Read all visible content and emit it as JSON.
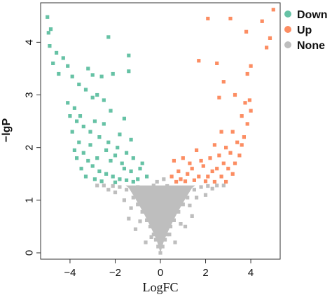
{
  "chart_data": {
    "type": "scatter",
    "title": "",
    "xlabel": "LogFC",
    "ylabel": "−lgP",
    "xlim": [
      -5.3,
      5.3
    ],
    "ylim": [
      -0.12,
      4.75
    ],
    "xticks": [
      -4,
      -2,
      0,
      2,
      4
    ],
    "xtick_labels": [
      "−4",
      "−2",
      "0",
      "2",
      "4"
    ],
    "yticks": [
      0,
      1,
      2,
      3,
      4
    ],
    "ytick_labels": [
      "0",
      "1",
      "2",
      "3",
      "4"
    ],
    "grid": false,
    "legend_position": "top-right",
    "colors": {
      "Down": "#66c2a5",
      "Up": "#fc8d62",
      "None": "#bebebe"
    },
    "series": [
      {
        "name": "None",
        "points": [
          [
            0,
            0.0
          ],
          [
            -0.1,
            0.12
          ],
          [
            0.1,
            0.12
          ],
          [
            -0.2,
            0.25
          ],
          [
            0.2,
            0.25
          ],
          [
            -0.3,
            0.35
          ],
          [
            0.3,
            0.35
          ],
          [
            -0.45,
            0.5
          ],
          [
            0.45,
            0.5
          ],
          [
            -0.6,
            0.62
          ],
          [
            0.6,
            0.62
          ],
          [
            -0.8,
            0.78
          ],
          [
            0.8,
            0.78
          ],
          [
            -1.0,
            0.92
          ],
          [
            1.0,
            0.92
          ],
          [
            -1.2,
            1.05
          ],
          [
            1.2,
            1.05
          ],
          [
            -1.5,
            1.2
          ],
          [
            1.5,
            1.2
          ],
          [
            -1.8,
            1.25
          ],
          [
            1.8,
            1.25
          ],
          [
            -2.1,
            1.27
          ],
          [
            2.1,
            1.27
          ],
          [
            -2.5,
            1.28
          ],
          [
            2.5,
            1.28
          ],
          [
            -2.8,
            1.28
          ],
          [
            2.8,
            1.28
          ],
          [
            -0.2,
            0.6
          ],
          [
            0.2,
            0.7
          ],
          [
            -0.5,
            0.9
          ],
          [
            0.5,
            1.0
          ],
          [
            -0.7,
            1.2
          ],
          [
            0.7,
            1.15
          ],
          [
            -1.0,
            1.25
          ],
          [
            1.0,
            1.22
          ],
          [
            -0.4,
            0.3
          ],
          [
            0.4,
            0.35
          ],
          [
            -0.9,
            0.6
          ],
          [
            0.9,
            0.55
          ],
          [
            -1.3,
            0.85
          ],
          [
            1.3,
            0.9
          ],
          [
            -1.6,
            1.0
          ],
          [
            1.6,
            1.05
          ],
          [
            -2.0,
            1.15
          ],
          [
            2.0,
            1.1
          ],
          [
            -0.3,
            1.28
          ],
          [
            0.3,
            1.27
          ],
          [
            -0.15,
            1.35
          ],
          [
            0.15,
            1.4
          ],
          [
            -1.1,
            0.45
          ],
          [
            1.1,
            0.5
          ],
          [
            -0.65,
            0.2
          ],
          [
            0.65,
            0.2
          ],
          [
            -1.4,
            0.65
          ],
          [
            1.4,
            0.7
          ],
          [
            -2.3,
            1.2
          ],
          [
            2.3,
            1.22
          ]
        ]
      },
      {
        "name": "Down",
        "points": [
          [
            -5.0,
            4.48
          ],
          [
            -4.85,
            4.25
          ],
          [
            -4.95,
            4.18
          ],
          [
            -4.9,
            3.93
          ],
          [
            -4.6,
            3.8
          ],
          [
            -4.3,
            3.7
          ],
          [
            -4.75,
            3.6
          ],
          [
            -4.1,
            3.55
          ],
          [
            -4.5,
            3.4
          ],
          [
            -3.0,
            3.38
          ],
          [
            -2.6,
            3.35
          ],
          [
            -3.2,
            3.5
          ],
          [
            -3.9,
            3.35
          ],
          [
            -3.6,
            3.2
          ],
          [
            -2.1,
            3.4
          ],
          [
            -1.4,
            3.45
          ],
          [
            -1.4,
            3.75
          ],
          [
            -2.3,
            4.1
          ],
          [
            -3.3,
            3.1
          ],
          [
            -2.8,
            3.0
          ],
          [
            -3.0,
            2.95
          ],
          [
            -2.5,
            2.9
          ],
          [
            -4.1,
            2.85
          ],
          [
            -3.8,
            2.75
          ],
          [
            -2.2,
            2.7
          ],
          [
            -1.6,
            2.55
          ],
          [
            -4.0,
            2.6
          ],
          [
            -3.7,
            2.5
          ],
          [
            -3.4,
            2.4
          ],
          [
            -3.1,
            2.3
          ],
          [
            -2.7,
            2.2
          ],
          [
            -2.3,
            2.1
          ],
          [
            -1.9,
            2.0
          ],
          [
            -1.5,
            1.9
          ],
          [
            -1.2,
            1.8
          ],
          [
            -0.9,
            1.6
          ],
          [
            -3.9,
            2.3
          ],
          [
            -3.6,
            2.1
          ],
          [
            -3.4,
            1.9
          ],
          [
            -3.2,
            1.75
          ],
          [
            -3.0,
            1.65
          ],
          [
            -2.7,
            1.55
          ],
          [
            -2.4,
            1.5
          ],
          [
            -2.1,
            1.45
          ],
          [
            -1.8,
            1.4
          ],
          [
            -1.5,
            1.38
          ],
          [
            -1.2,
            1.35
          ],
          [
            -3.7,
            1.8
          ],
          [
            -3.5,
            1.6
          ],
          [
            -3.3,
            1.45
          ],
          [
            -2.9,
            1.4
          ],
          [
            -2.6,
            1.36
          ],
          [
            -2.0,
            1.34
          ],
          [
            -1.0,
            1.4
          ],
          [
            -0.8,
            1.7
          ],
          [
            -0.6,
            1.45
          ],
          [
            -3.8,
            1.95
          ],
          [
            -3.55,
            2.6
          ],
          [
            -2.9,
            2.5
          ],
          [
            -2.5,
            2.45
          ],
          [
            -1.8,
            2.25
          ],
          [
            -1.3,
            2.15
          ],
          [
            -2.8,
            1.8
          ],
          [
            -2.2,
            1.75
          ],
          [
            -1.6,
            1.6
          ],
          [
            -1.3,
            1.55
          ],
          [
            -3.1,
            2.05
          ],
          [
            -2.4,
            1.95
          ],
          [
            -2.0,
            1.85
          ],
          [
            -1.7,
            1.7
          ]
        ]
      },
      {
        "name": "Up",
        "points": [
          [
            5.0,
            4.62
          ],
          [
            4.5,
            4.4
          ],
          [
            3.1,
            4.45
          ],
          [
            2.1,
            4.45
          ],
          [
            3.8,
            4.2
          ],
          [
            4.85,
            4.08
          ],
          [
            4.7,
            3.9
          ],
          [
            1.7,
            3.65
          ],
          [
            2.5,
            3.6
          ],
          [
            4.0,
            3.55
          ],
          [
            3.85,
            3.4
          ],
          [
            2.8,
            3.25
          ],
          [
            2.6,
            2.95
          ],
          [
            3.3,
            3.0
          ],
          [
            3.75,
            2.85
          ],
          [
            3.95,
            2.9
          ],
          [
            4.0,
            2.7
          ],
          [
            3.6,
            2.6
          ],
          [
            3.85,
            2.45
          ],
          [
            2.7,
            2.3
          ],
          [
            3.2,
            2.3
          ],
          [
            3.4,
            2.1
          ],
          [
            2.4,
            2.05
          ],
          [
            2.9,
            2.0
          ],
          [
            3.6,
            2.05
          ],
          [
            3.1,
            1.9
          ],
          [
            2.6,
            1.85
          ],
          [
            2.2,
            1.8
          ],
          [
            1.6,
            1.95
          ],
          [
            1.0,
            1.8
          ],
          [
            0.6,
            1.75
          ],
          [
            1.3,
            1.7
          ],
          [
            1.9,
            1.65
          ],
          [
            2.5,
            1.6
          ],
          [
            3.0,
            1.6
          ],
          [
            3.3,
            1.7
          ],
          [
            0.8,
            1.55
          ],
          [
            1.2,
            1.5
          ],
          [
            1.7,
            1.45
          ],
          [
            2.1,
            1.45
          ],
          [
            2.7,
            1.45
          ],
          [
            0.9,
            1.4
          ],
          [
            1.5,
            1.38
          ],
          [
            2.0,
            1.36
          ],
          [
            2.4,
            1.35
          ],
          [
            2.9,
            1.35
          ],
          [
            0.5,
            1.45
          ],
          [
            3.5,
            1.85
          ],
          [
            3.7,
            2.2
          ],
          [
            1.8,
            1.75
          ],
          [
            2.3,
            1.55
          ],
          [
            2.8,
            1.7
          ],
          [
            3.2,
            1.5
          ],
          [
            1.4,
            1.6
          ],
          [
            0.7,
            1.35
          ],
          [
            1.1,
            1.36
          ]
        ]
      }
    ]
  }
}
